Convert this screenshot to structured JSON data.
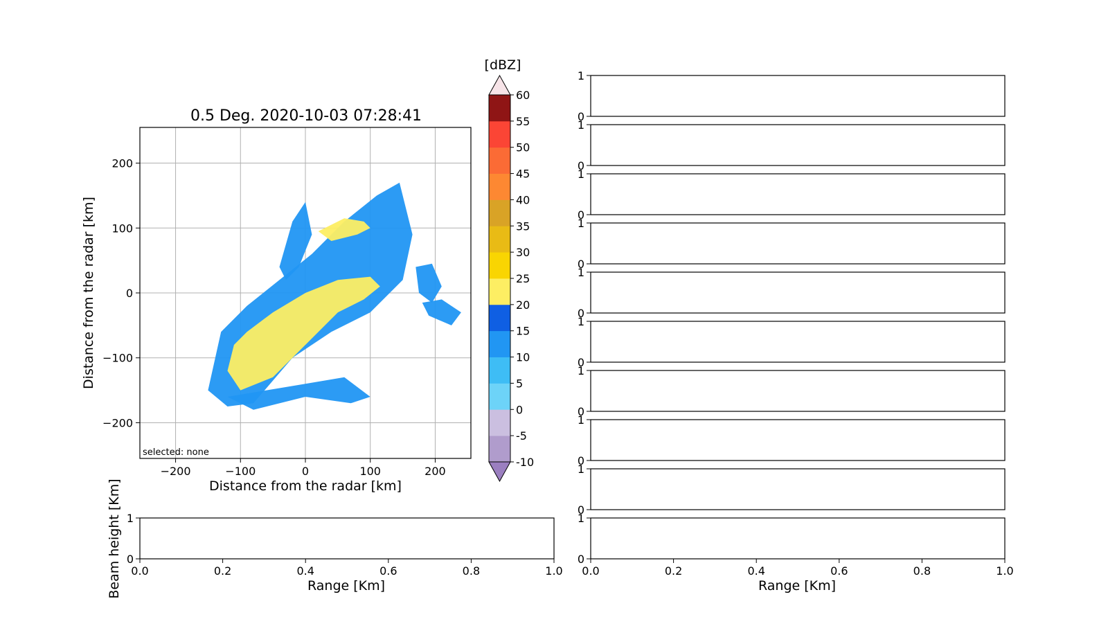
{
  "chart_data": [
    {
      "type": "heatmap",
      "name": "ppi",
      "title": "0.5 Deg. 2020-10-03 07:28:41",
      "xlabel": "Distance from the radar [km]",
      "ylabel": "Distance from the radar [km]",
      "xlim": [
        -255,
        255
      ],
      "ylim": [
        -255,
        255
      ],
      "xticks": [
        -200,
        -100,
        0,
        100,
        200
      ],
      "yticks": [
        200,
        100,
        0,
        -100,
        -200
      ],
      "xtick_labels": [
        "−200",
        "−100",
        "0",
        "100",
        "200"
      ],
      "ytick_labels": [
        "200",
        "100",
        "0",
        "−100",
        "−200"
      ],
      "grid": true,
      "annotation": "selected: none",
      "echo_regions": [
        {
          "level": 10,
          "x": [
            -150,
            -130,
            -90,
            -40,
            10,
            60,
            110,
            145,
            165,
            150,
            100,
            40,
            -20,
            -80,
            -120,
            -150
          ],
          "y": [
            -150,
            -60,
            -20,
            20,
            60,
            110,
            150,
            170,
            90,
            20,
            -30,
            -60,
            -100,
            -170,
            -175,
            -150
          ]
        },
        {
          "level": 10,
          "x": [
            -40,
            -20,
            0,
            10,
            -10,
            -30
          ],
          "y": [
            40,
            110,
            140,
            90,
            40,
            20
          ]
        },
        {
          "level": 10,
          "x": [
            170,
            195,
            210,
            195,
            175
          ],
          "y": [
            40,
            45,
            10,
            -15,
            0
          ]
        },
        {
          "level": 10,
          "x": [
            180,
            210,
            240,
            225,
            190
          ],
          "y": [
            -15,
            -10,
            -30,
            -50,
            -35
          ]
        },
        {
          "level": 10,
          "x": [
            -120,
            -60,
            0,
            60,
            100,
            70,
            0,
            -80,
            -120
          ],
          "y": [
            -160,
            -150,
            -140,
            -130,
            -160,
            -170,
            -160,
            -180,
            -160
          ]
        },
        {
          "level": 20,
          "x": [
            -110,
            -90,
            -50,
            0,
            50,
            100,
            115,
            90,
            50,
            0,
            -50,
            -100,
            -120
          ],
          "y": [
            -80,
            -60,
            -30,
            0,
            20,
            25,
            10,
            -10,
            -30,
            -80,
            -130,
            -150,
            -120
          ]
        },
        {
          "level": 20,
          "x": [
            20,
            60,
            90,
            100,
            80,
            40
          ],
          "y": [
            95,
            115,
            110,
            100,
            90,
            80
          ]
        }
      ]
    },
    {
      "type": "line",
      "name": "beam-height",
      "title": "",
      "xlabel": "Range [Km]",
      "ylabel": "Beam height [Km]",
      "xlim": [
        0,
        1
      ],
      "ylim": [
        0,
        1
      ],
      "xticks": [
        0.0,
        0.2,
        0.4,
        0.6,
        0.8,
        1.0
      ],
      "xtick_labels": [
        "0.0",
        "0.2",
        "0.4",
        "0.6",
        "0.8",
        "1.0"
      ],
      "yticks": [
        1,
        0
      ],
      "ytick_labels": [
        "1",
        "0"
      ],
      "series": []
    },
    {
      "type": "line",
      "name": "profile-stack",
      "title": "",
      "xlabel": "Range [Km]",
      "ylabel": "",
      "panel_count": 10,
      "xlim": [
        0,
        1
      ],
      "ylim": [
        0,
        1
      ],
      "xticks": [
        0.0,
        0.2,
        0.4,
        0.6,
        0.8,
        1.0
      ],
      "xtick_labels": [
        "0.0",
        "0.2",
        "0.4",
        "0.6",
        "0.8",
        "1.0"
      ],
      "yticks": [
        1,
        0
      ],
      "ytick_labels": [
        "1",
        "0"
      ],
      "series": []
    }
  ],
  "colorbar": {
    "unit": "[dBZ]",
    "levels": [
      -10,
      -5,
      0,
      5,
      10,
      15,
      20,
      25,
      30,
      35,
      40,
      45,
      50,
      55,
      60
    ],
    "labels": [
      "-10",
      "-5",
      "0",
      "5",
      "10",
      "15",
      "20",
      "25",
      "30",
      "35",
      "40",
      "45",
      "50",
      "55",
      "60"
    ],
    "colors": [
      "#b09ccc",
      "#cbbfe0",
      "#6dd3f8",
      "#3ebdf5",
      "#2196f3",
      "#0f5fe3",
      "#fdee63",
      "#f9d502",
      "#e9bb15",
      "#d9a326",
      "#fd8832",
      "#fb6b35",
      "#fb4535",
      "#8f1515"
    ],
    "under_color": "#9b7fc0",
    "over_color": "#f7e4e8"
  }
}
